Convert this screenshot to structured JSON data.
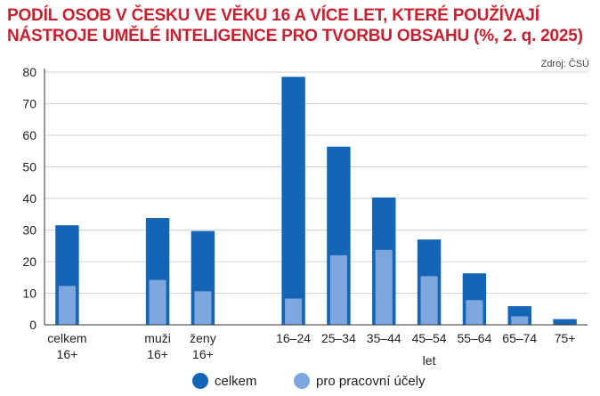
{
  "chart_data": {
    "type": "bar",
    "title_lines": [
      "PODÍL OSOB V ČESKU VE VĚKU 16 A VÍCE LET, KTERÉ POUŽÍVAJÍ",
      "NÁSTROJE UMĚLÉ INTELIGENCE PRO TVORBU OBSAHU (%, 2. q. 2025)"
    ],
    "source": "Zdroj: ČSÚ",
    "categories": [
      {
        "label": [
          "celkem",
          "16+"
        ],
        "group_gap_after": true
      },
      {
        "label": [
          "muži",
          "16+"
        ]
      },
      {
        "label": [
          "ženy",
          "16+"
        ],
        "group_gap_after": true
      },
      {
        "label": [
          "16–24"
        ]
      },
      {
        "label": [
          "25–34"
        ]
      },
      {
        "label": [
          "35–44"
        ]
      },
      {
        "label": [
          "45–54"
        ]
      },
      {
        "label": [
          "55–64"
        ]
      },
      {
        "label": [
          "65–74"
        ]
      },
      {
        "label": [
          "75+"
        ]
      }
    ],
    "series": [
      {
        "name": "celkem",
        "color": "#1565b6",
        "values": [
          31.5,
          33.8,
          29.7,
          78.5,
          56.4,
          40.3,
          27.0,
          16.3,
          5.9,
          1.8
        ]
      },
      {
        "name": "pro pracovní účely",
        "color": "#7ea8dd",
        "values": [
          12.3,
          14.2,
          10.6,
          8.3,
          22.0,
          23.7,
          15.4,
          7.8,
          2.7,
          null
        ]
      }
    ],
    "group_axis_label": "let",
    "ylim": [
      0,
      80
    ],
    "yticks": [
      0,
      10,
      20,
      30,
      40,
      50,
      60,
      70,
      80
    ],
    "grid": true,
    "legend_position": "bottom-center",
    "overlay": true
  }
}
